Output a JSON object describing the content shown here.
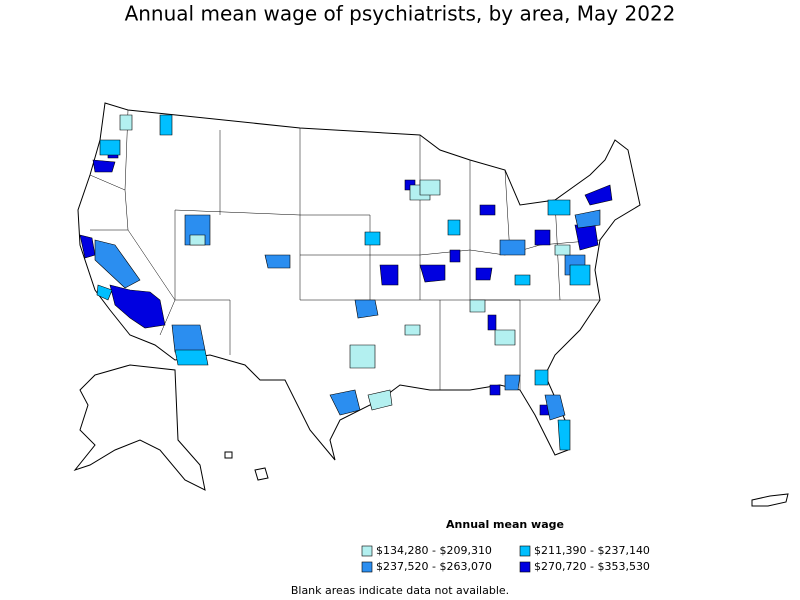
{
  "title": "Annual mean wage of psychiatrists, by area, May 2022",
  "legend": {
    "title": "Annual mean wage",
    "items": [
      {
        "label": "$134,280 - $209,310",
        "color": "#b3f0f0"
      },
      {
        "label": "$211,390 - $237,140",
        "color": "#00bfff"
      },
      {
        "label": "$237,520 - $263,070",
        "color": "#2b8ef0"
      },
      {
        "label": "$270,720 - $353,530",
        "color": "#0000e0"
      }
    ]
  },
  "note": "Blank areas indicate data not available."
}
